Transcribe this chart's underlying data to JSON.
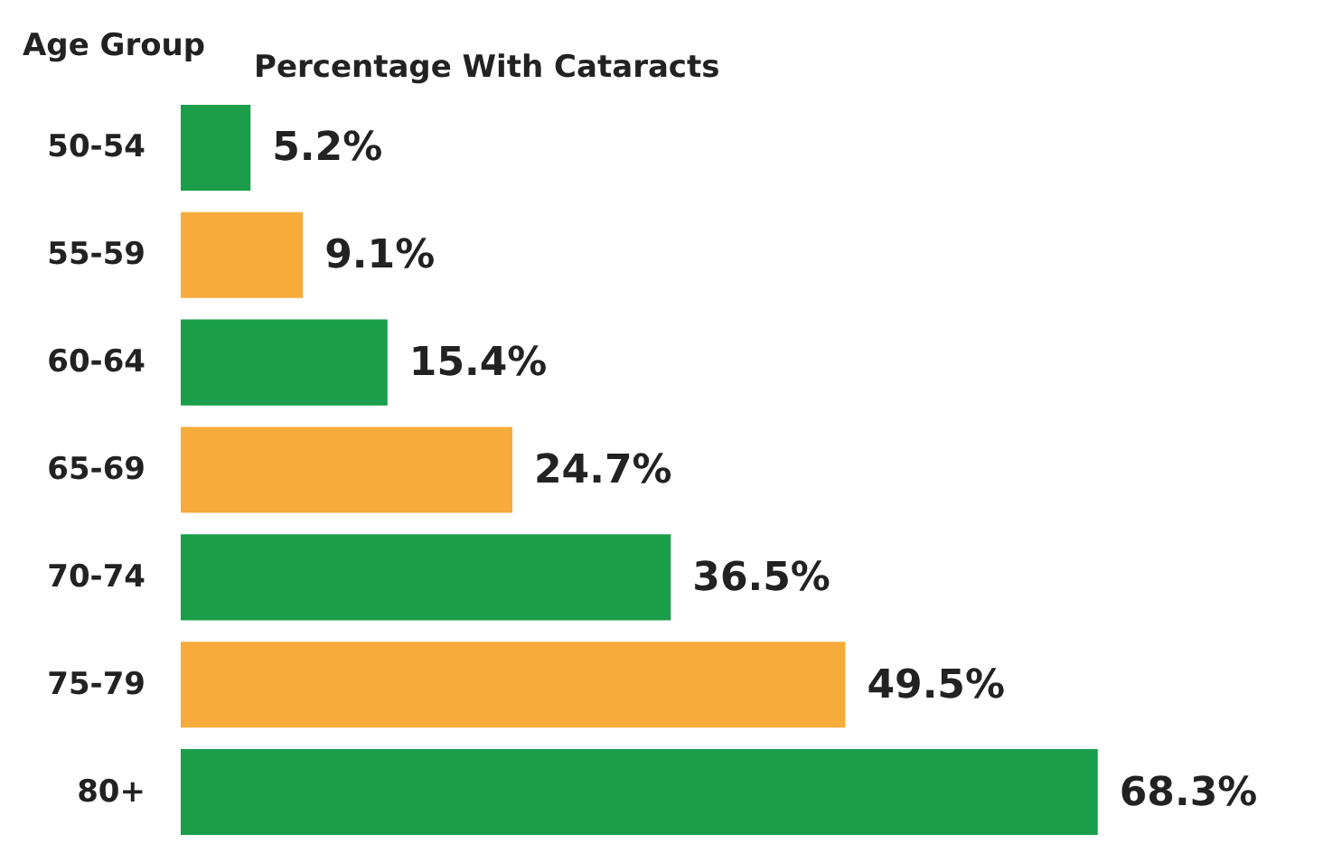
{
  "chart_data": {
    "type": "bar",
    "orientation": "horizontal",
    "xlabel": "Percentage With Cataracts",
    "ylabel": "Age Group",
    "categories": [
      "50-54",
      "55-59",
      "60-64",
      "65-69",
      "70-74",
      "75-79",
      "80+"
    ],
    "values": [
      5.2,
      9.1,
      15.4,
      24.7,
      36.5,
      49.5,
      68.3
    ],
    "colors": [
      "#1a9e4a",
      "#f7ab3a",
      "#1a9e4a",
      "#f7ab3a",
      "#1a9e4a",
      "#f7ab3a",
      "#1a9e4a"
    ],
    "value_labels": [
      "5.2%",
      "9.1%",
      "15.4%",
      "24.7%",
      "36.5%",
      "49.5%",
      "68.3%"
    ]
  }
}
